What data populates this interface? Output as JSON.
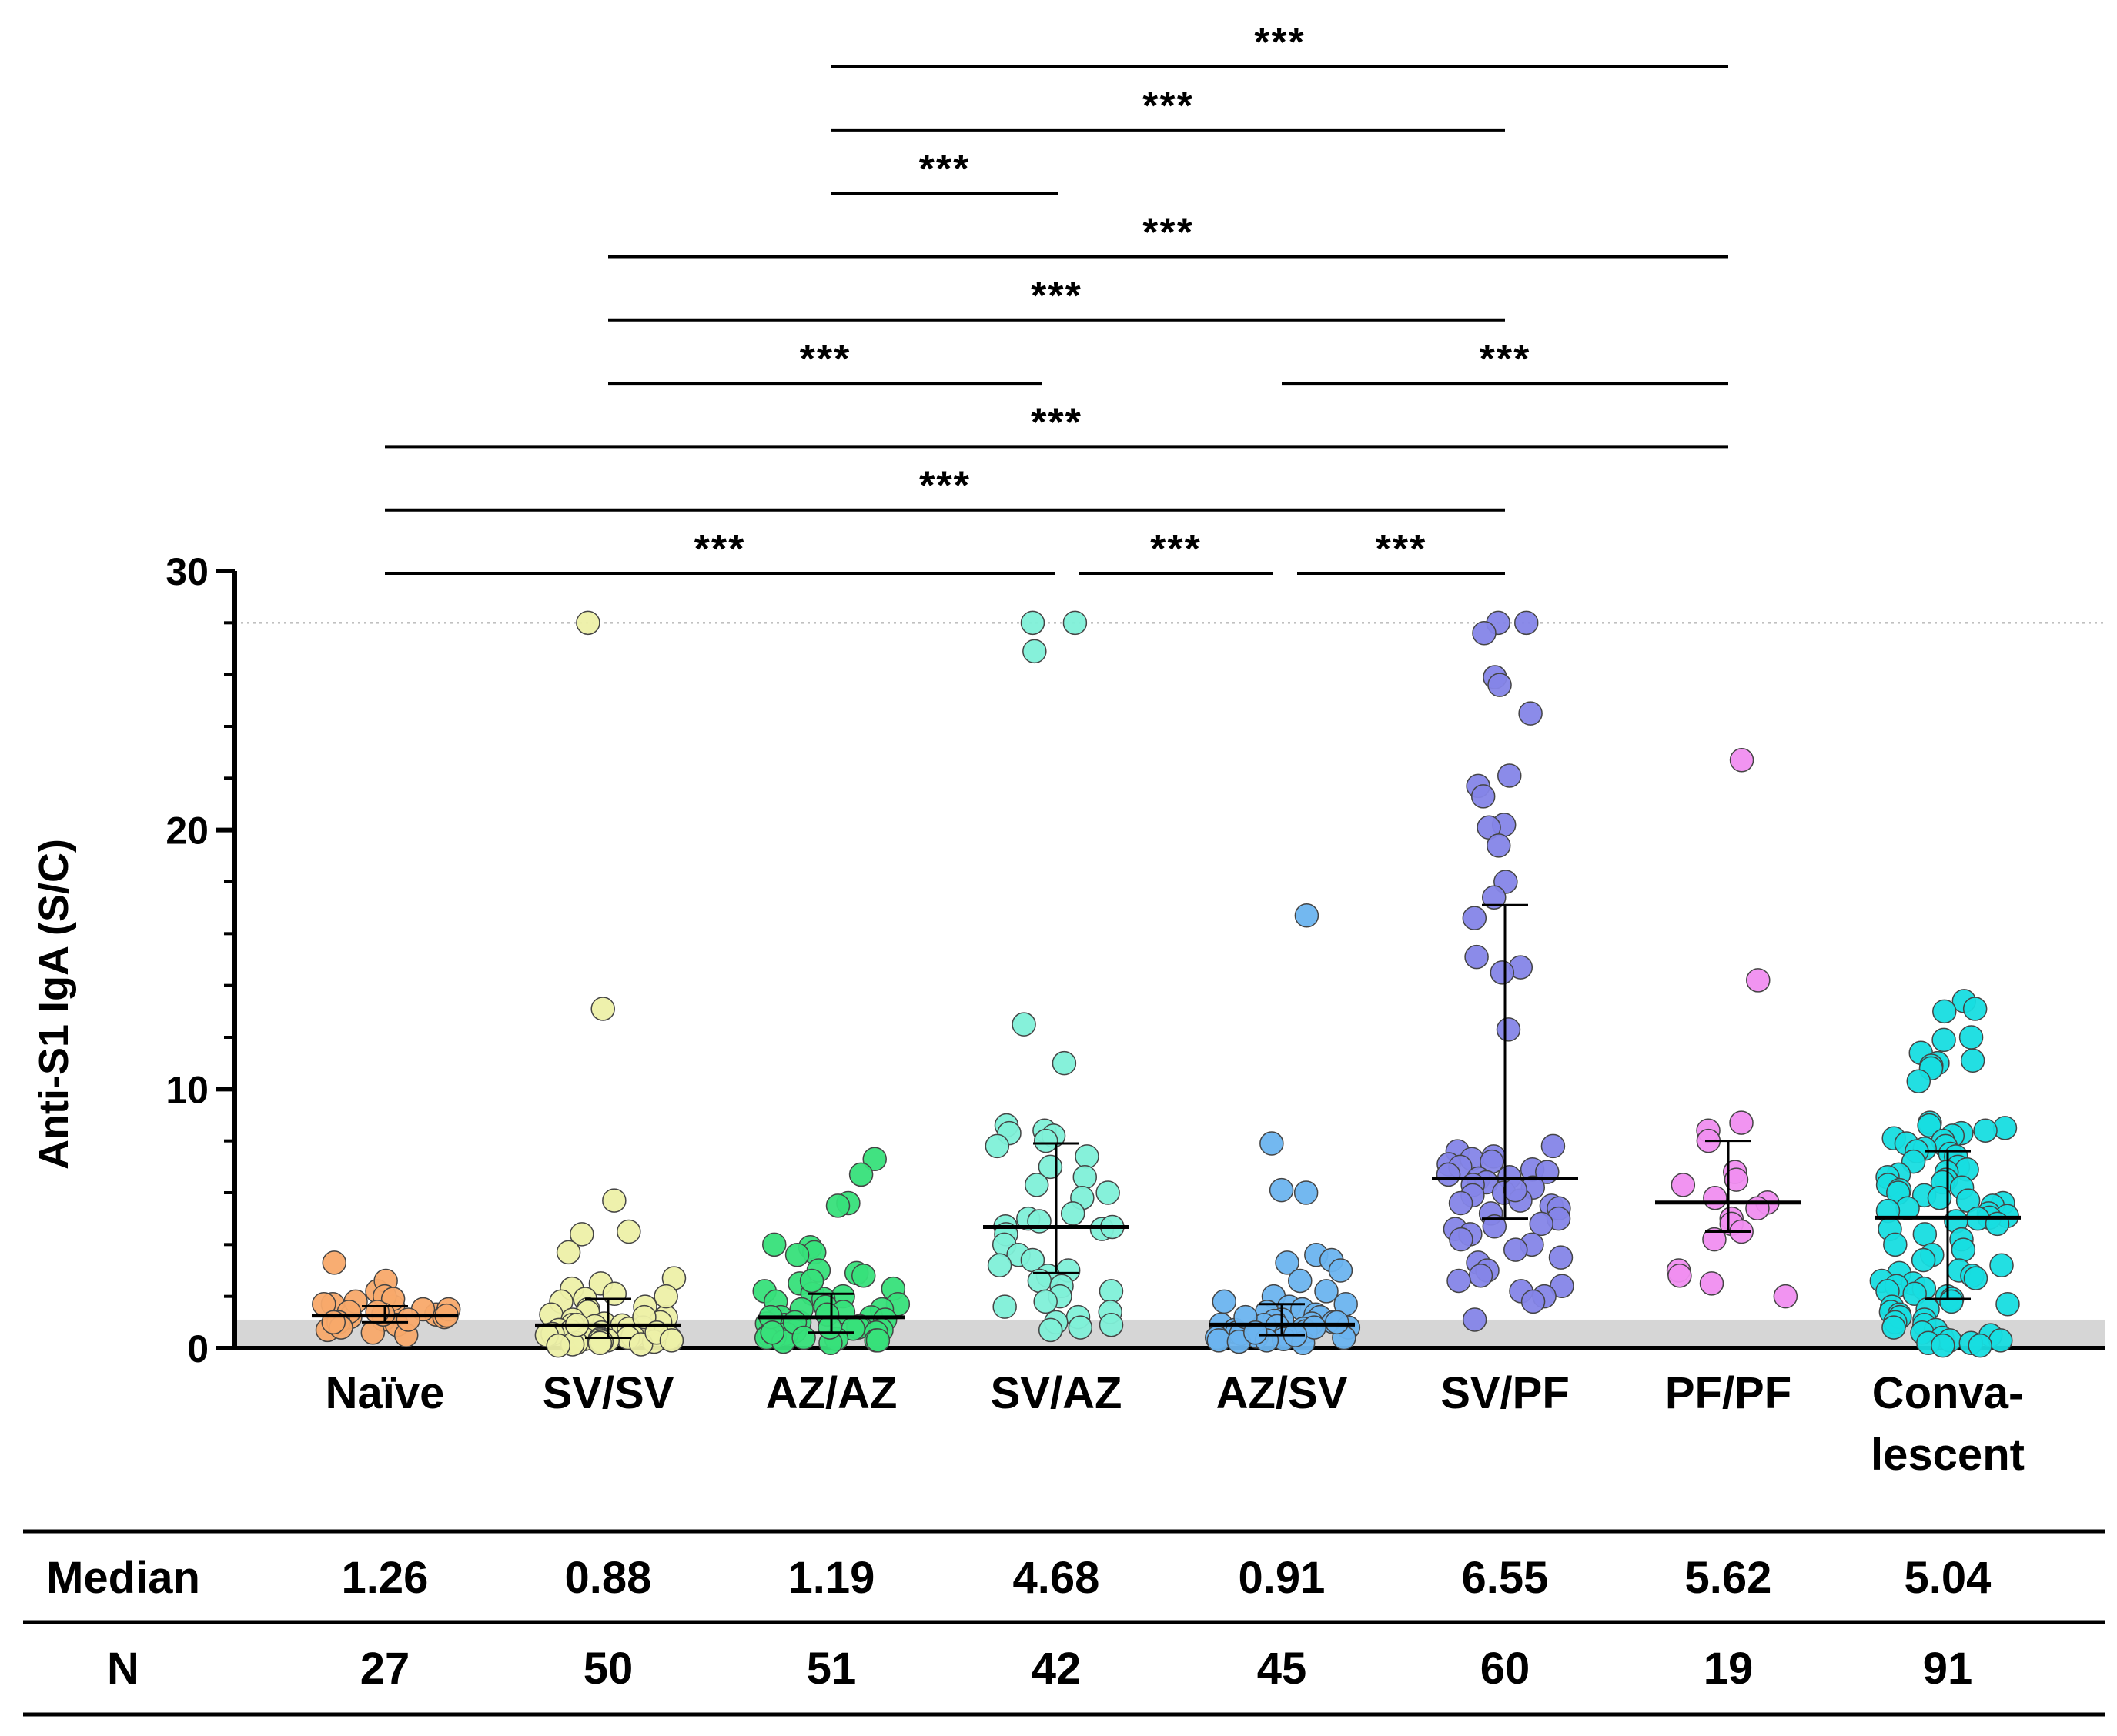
{
  "chart_data": {
    "type": "scatter",
    "ylabel": "Anti-S1 IgA (S/C)",
    "ylim": [
      0,
      30
    ],
    "yticks": [
      0,
      10,
      20,
      30
    ],
    "y_minor_step": 2,
    "cutoff_band": [
      0,
      1.1
    ],
    "upper_limit": 28,
    "groups": [
      {
        "name": "Naïve",
        "lines": [
          "Naïve"
        ],
        "color": "#f8a96a",
        "median": 1.26,
        "iqr": [
          1.0,
          1.62
        ],
        "points": [
          1.1,
          1.6,
          1.7,
          1.2,
          2.2,
          2.6,
          3.3,
          1.3,
          0.9,
          0.6,
          1.8,
          1.5,
          0.5,
          0.7,
          2.0,
          1.4,
          1.1,
          1.0,
          1.9,
          1.3,
          0.8,
          1.7,
          1.2,
          1.5,
          1.0,
          1.4,
          1.26
        ]
      },
      {
        "name": "SV/SV",
        "lines": [
          "SV/SV"
        ],
        "color": "#edf0a8",
        "median": 0.88,
        "iqr": [
          0.4,
          1.9
        ],
        "points": [
          28,
          13.1,
          5.7,
          4.5,
          4.4,
          3.7,
          2.7,
          2.5,
          2.3,
          2.1,
          1.9,
          1.8,
          1.6,
          1.5,
          1.4,
          1.3,
          1.2,
          1.1,
          1.0,
          0.95,
          0.9,
          0.88,
          0.85,
          0.8,
          0.75,
          0.7,
          0.65,
          0.6,
          0.55,
          0.5,
          0.5,
          0.45,
          0.4,
          0.4,
          0.35,
          0.35,
          0.3,
          0.3,
          0.25,
          0.25,
          0.2,
          0.2,
          0.15,
          0.15,
          0.1,
          0.9,
          1.2,
          0.6,
          0.3,
          2.0
        ]
      },
      {
        "name": "AZ/AZ",
        "lines": [
          "AZ/AZ"
        ],
        "color": "#37e07a",
        "median": 1.19,
        "iqr": [
          0.6,
          2.1
        ],
        "points": [
          7.3,
          6.7,
          5.6,
          5.5,
          4.0,
          3.9,
          3.7,
          3.6,
          3.0,
          2.9,
          2.8,
          2.5,
          2.3,
          2.2,
          2.1,
          2.0,
          1.9,
          1.8,
          1.7,
          1.6,
          1.5,
          1.4,
          1.3,
          1.2,
          1.19,
          1.1,
          1.0,
          0.95,
          0.9,
          0.85,
          0.8,
          0.75,
          0.7,
          0.65,
          0.6,
          0.55,
          0.5,
          0.45,
          0.4,
          0.35,
          0.3,
          0.3,
          0.25,
          0.2,
          1.2,
          1.5,
          0.8,
          0.6,
          2.6,
          1.0,
          0.4
        ]
      },
      {
        "name": "SV/AZ",
        "lines": [
          "SV/AZ"
        ],
        "color": "#7ff0d8",
        "median": 4.68,
        "iqr": [
          2.9,
          7.9
        ],
        "points": [
          28,
          28,
          26.9,
          12.5,
          11.0,
          8.6,
          8.4,
          8.3,
          8.2,
          8.0,
          7.8,
          7.4,
          7.0,
          6.6,
          6.3,
          6.0,
          5.8,
          5.2,
          5.0,
          4.9,
          4.7,
          4.6,
          4.4,
          4.0,
          3.6,
          3.4,
          3.2,
          3.0,
          2.8,
          2.6,
          2.4,
          2.2,
          2.0,
          1.8,
          1.6,
          1.4,
          1.2,
          1.0,
          0.9,
          0.8,
          0.7,
          4.68
        ]
      },
      {
        "name": "AZ/SV",
        "lines": [
          "AZ/SV"
        ],
        "color": "#6cb4ef",
        "median": 0.91,
        "iqr": [
          0.5,
          1.7
        ],
        "points": [
          16.7,
          7.9,
          6.1,
          6.0,
          3.6,
          3.4,
          3.3,
          3.0,
          2.6,
          2.2,
          2.0,
          1.8,
          1.7,
          1.6,
          1.5,
          1.4,
          1.3,
          1.2,
          1.1,
          1.05,
          1.0,
          0.95,
          0.91,
          0.9,
          0.85,
          0.8,
          0.75,
          0.7,
          0.65,
          0.6,
          0.55,
          0.5,
          0.45,
          0.4,
          0.4,
          0.35,
          0.3,
          0.3,
          0.25,
          0.2,
          1.2,
          0.8,
          0.6,
          1.0,
          0.5
        ]
      },
      {
        "name": "SV/PF",
        "lines": [
          "SV/PF"
        ],
        "color": "#8585e8",
        "median": 6.55,
        "iqr": [
          5.0,
          17.1
        ],
        "points": [
          28,
          28,
          27.6,
          25.9,
          25.6,
          24.5,
          22.1,
          21.7,
          21.3,
          20.2,
          20.1,
          19.4,
          18.0,
          17.4,
          16.6,
          15.1,
          14.7,
          14.5,
          12.3,
          7.8,
          7.6,
          7.4,
          7.3,
          7.2,
          7.1,
          7.0,
          6.9,
          6.8,
          6.7,
          6.6,
          6.55,
          6.4,
          6.3,
          6.2,
          6.0,
          5.9,
          5.7,
          5.5,
          5.4,
          5.2,
          5.0,
          4.8,
          4.7,
          4.6,
          4.4,
          4.2,
          4.0,
          3.8,
          3.5,
          3.3,
          3.0,
          2.8,
          2.6,
          2.4,
          2.2,
          2.0,
          1.8,
          1.1,
          6.1,
          5.6
        ]
      },
      {
        "name": "PF/PF",
        "lines": [
          "PF/PF"
        ],
        "color": "#f08ef0",
        "median": 5.62,
        "iqr": [
          4.5,
          8.0
        ],
        "points": [
          22.7,
          14.2,
          8.7,
          8.4,
          8.0,
          6.8,
          6.5,
          6.3,
          5.8,
          5.62,
          5.4,
          5.0,
          4.8,
          4.5,
          4.2,
          3.0,
          2.8,
          2.5,
          2.0
        ]
      },
      {
        "name": "Convalescent",
        "lines": [
          "Conva-",
          "lescent"
        ],
        "color": "#17dde0",
        "median": 5.04,
        "iqr": [
          1.9,
          7.6
        ],
        "points": [
          13.4,
          13.1,
          13.0,
          12.0,
          11.9,
          11.4,
          11.1,
          11.0,
          10.9,
          10.8,
          10.3,
          8.7,
          8.6,
          8.5,
          8.4,
          8.3,
          8.2,
          8.1,
          8.0,
          7.9,
          7.8,
          7.7,
          7.6,
          7.5,
          7.4,
          7.2,
          7.0,
          6.9,
          6.8,
          6.7,
          6.6,
          6.5,
          6.4,
          6.3,
          6.2,
          6.1,
          6.0,
          5.9,
          5.8,
          5.7,
          5.6,
          5.5,
          5.4,
          5.3,
          5.2,
          5.1,
          5.04,
          5.0,
          4.9,
          4.8,
          4.6,
          4.4,
          4.2,
          4.0,
          3.8,
          3.6,
          3.4,
          3.2,
          3.0,
          2.9,
          2.8,
          2.7,
          2.6,
          2.5,
          2.4,
          2.3,
          2.2,
          2.1,
          2.0,
          1.9,
          1.8,
          1.7,
          1.6,
          1.5,
          1.4,
          1.3,
          1.2,
          1.1,
          1.0,
          0.9,
          0.8,
          0.7,
          0.6,
          0.5,
          0.4,
          0.3,
          0.3,
          0.2,
          0.2,
          0.1,
          0.1
        ]
      }
    ],
    "significance": [
      {
        "from": 2,
        "to": 6,
        "label": "***"
      },
      {
        "from": 2,
        "to": 5,
        "label": "***"
      },
      {
        "from": 2,
        "to": 3,
        "label": "***"
      },
      {
        "from": 1,
        "to": 6,
        "label": "***"
      },
      {
        "from": 1,
        "to": 5,
        "label": "***"
      },
      {
        "from": 1,
        "to": 3,
        "label": "***"
      },
      {
        "from": 4,
        "to": 6,
        "label": "***"
      },
      {
        "from": 0,
        "to": 6,
        "label": "***"
      },
      {
        "from": 0,
        "to": 5,
        "label": "***"
      },
      {
        "from": 0,
        "to": 3,
        "label": "***"
      },
      {
        "from": 3,
        "to": 4,
        "label": "***"
      },
      {
        "from": 4,
        "to": 5,
        "label": "***"
      }
    ],
    "table": {
      "rows": [
        {
          "label": "Median",
          "values": [
            "1.26",
            "0.88",
            "1.19",
            "4.68",
            "0.91",
            "6.55",
            "5.62",
            "5.04"
          ]
        },
        {
          "label": "N",
          "values": [
            "27",
            "50",
            "51",
            "42",
            "45",
            "60",
            "19",
            "91"
          ]
        }
      ]
    }
  }
}
